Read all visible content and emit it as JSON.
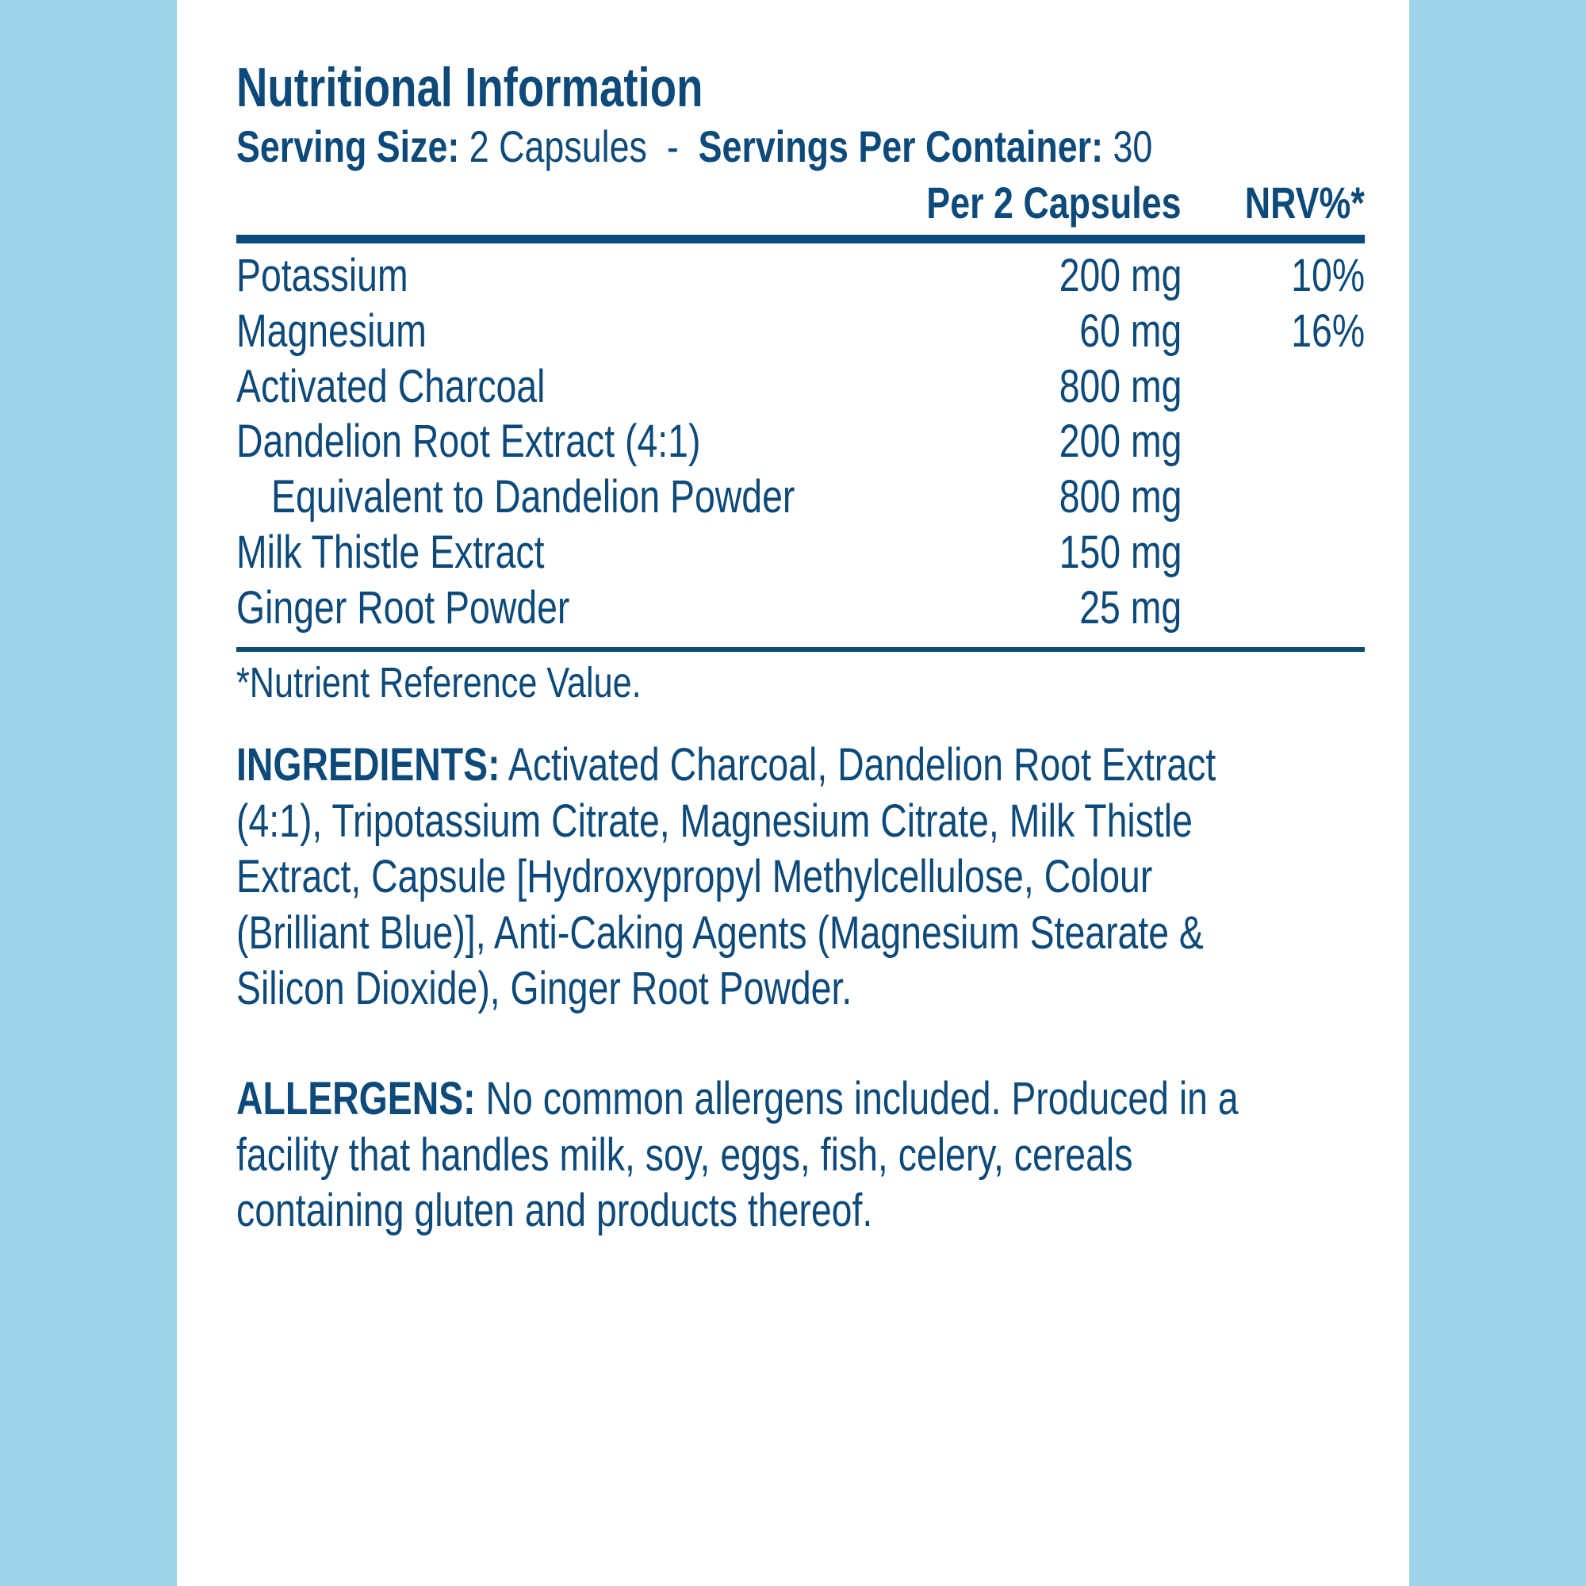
{
  "title": "Nutritional Information",
  "serving": {
    "size_label": "Serving Size:",
    "size_value": "2 Capsules",
    "separator": "-",
    "per_container_label": "Servings Per Container:",
    "per_container_value": "30"
  },
  "table": {
    "headers": {
      "amount": "Per 2 Capsules",
      "nrv": "NRV%*"
    },
    "rows": [
      {
        "name": "Potassium",
        "amount": "200 mg",
        "nrv": "10%"
      },
      {
        "name": "Magnesium",
        "amount": "60 mg",
        "nrv": "16%"
      },
      {
        "name": "Activated Charcoal",
        "amount": "800 mg",
        "nrv": ""
      },
      {
        "name": "Dandelion Root Extract (4:1)",
        "amount": "200 mg",
        "nrv": ""
      },
      {
        "name": "Equivalent to Dandelion Powder",
        "amount": "800 mg",
        "nrv": ""
      },
      {
        "name": "Milk Thistle Extract",
        "amount": "150 mg",
        "nrv": ""
      },
      {
        "name": "Ginger Root Powder",
        "amount": "25 mg",
        "nrv": ""
      }
    ],
    "footnote": "*Nutrient Reference Value."
  },
  "ingredients": {
    "label": "INGREDIENTS:",
    "text": "Activated Charcoal, Dandelion Root Extract (4:1), Tripotassium Citrate, Magnesium Citrate, Milk Thistle Extract, Capsule [Hydroxypropyl Methylcellulose, Colour (Brilliant Blue)], Anti-Caking Agents (Magnesium Stearate & Silicon Dioxide), Ginger Root Powder."
  },
  "allergens": {
    "label": "ALLERGENS:",
    "text": "No common allergens included. Produced in a facility that handles milk, soy, eggs, fish, celery, cereals containing gluten and products thereof."
  },
  "colors": {
    "text": "#0d4a7a",
    "background": "#9ed4ea",
    "panel": "#ffffff"
  }
}
